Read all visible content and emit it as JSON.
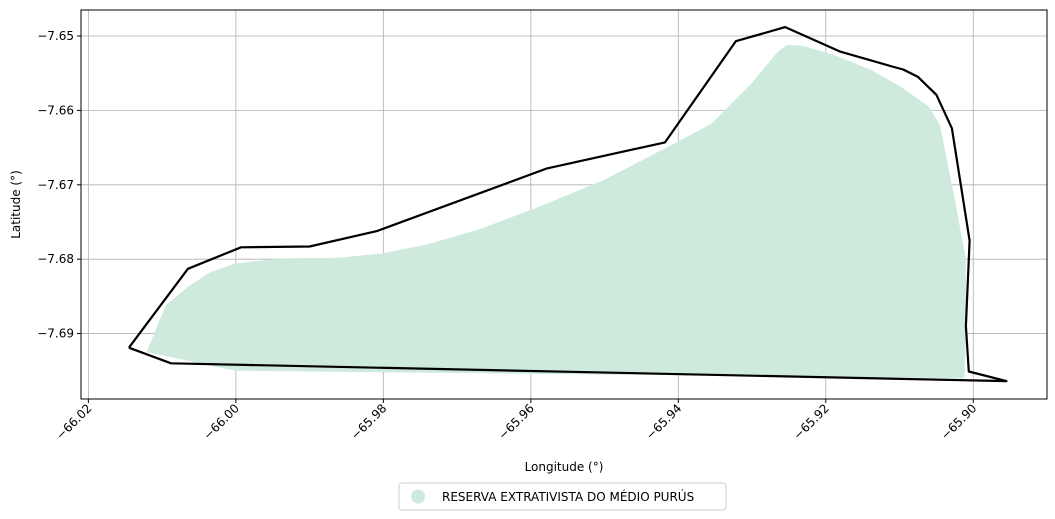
{
  "chart_data": {
    "type": "map",
    "xlabel": "Longitude (°)",
    "ylabel": "Latitude (°)",
    "xlim": [
      -66.021,
      -65.89
    ],
    "ylim": [
      -7.6988,
      -7.6465
    ],
    "xticks": [
      -66.02,
      -66.0,
      -65.98,
      -65.96,
      -65.94,
      -65.92,
      -65.9
    ],
    "xtick_labels": [
      "−66.02",
      "−66.00",
      "−65.98",
      "−65.96",
      "−65.94",
      "−65.92",
      "−65.90"
    ],
    "yticks": [
      -7.65,
      -7.66,
      -7.67,
      -7.68,
      -7.69
    ],
    "ytick_labels": [
      "−7.65",
      "−7.66",
      "−7.67",
      "−7.68",
      "−7.69"
    ],
    "grid": true,
    "legend": {
      "placement": "bottom-center",
      "entries": [
        {
          "label": "RESERVA EXTRATIVISTA DO MÉDIO PURÚS",
          "color": "#cdeadd",
          "marker": "circle"
        }
      ]
    },
    "layers": [
      {
        "name": "RESERVA EXTRATIVISTA DO MÉDIO PURÚS",
        "kind": "filled-polygon",
        "color": "#cdeadd",
        "points": [
          [
            -66.0121,
            -7.6925
          ],
          [
            -66.0095,
            -7.6862
          ],
          [
            -66.0066,
            -7.6838
          ],
          [
            -66.0036,
            -7.6818
          ],
          [
            -66.0002,
            -7.6806
          ],
          [
            -65.994,
            -7.6799
          ],
          [
            -65.986,
            -7.6798
          ],
          [
            -65.98,
            -7.6792
          ],
          [
            -65.974,
            -7.678
          ],
          [
            -65.967,
            -7.676
          ],
          [
            -65.959,
            -7.673
          ],
          [
            -65.95,
            -7.6693
          ],
          [
            -65.942,
            -7.6652
          ],
          [
            -65.9355,
            -7.6618
          ],
          [
            -65.93,
            -7.6563
          ],
          [
            -65.9265,
            -7.6521
          ],
          [
            -65.9253,
            -7.6512
          ],
          [
            -65.9232,
            -7.6513
          ],
          [
            -65.919,
            -7.6525
          ],
          [
            -65.914,
            -7.6545
          ],
          [
            -65.91,
            -7.6567
          ],
          [
            -65.906,
            -7.6595
          ],
          [
            -65.9045,
            -7.662
          ],
          [
            -65.9025,
            -7.672
          ],
          [
            -65.901,
            -7.68
          ],
          [
            -65.901,
            -7.69
          ],
          [
            -65.9012,
            -7.696
          ],
          [
            -66.0,
            -7.695
          ],
          [
            -66.0121,
            -7.6925
          ]
        ]
      },
      {
        "name": "outline",
        "kind": "line",
        "color": "#000000",
        "points": [
          [
            -66.0145,
            -7.6919
          ],
          [
            -66.0088,
            -7.694
          ],
          [
            -65.8955,
            -7.6964
          ],
          [
            -65.9006,
            -7.6951
          ],
          [
            -65.901,
            -7.689
          ],
          [
            -65.9005,
            -7.6775
          ],
          [
            -65.9029,
            -7.6624
          ],
          [
            -65.905,
            -7.6579
          ],
          [
            -65.9075,
            -7.6555
          ],
          [
            -65.9095,
            -7.6545
          ],
          [
            -65.911,
            -7.6541
          ],
          [
            -65.918,
            -7.6521
          ],
          [
            -65.9255,
            -7.6488
          ],
          [
            -65.9322,
            -7.6507
          ],
          [
            -65.9418,
            -7.6643
          ],
          [
            -65.9578,
            -7.6678
          ],
          [
            -65.9808,
            -7.6762
          ],
          [
            -65.99,
            -7.6783
          ],
          [
            -65.9993,
            -7.6784
          ],
          [
            -66.0065,
            -7.6813
          ],
          [
            -66.0145,
            -7.6919
          ]
        ]
      }
    ]
  }
}
